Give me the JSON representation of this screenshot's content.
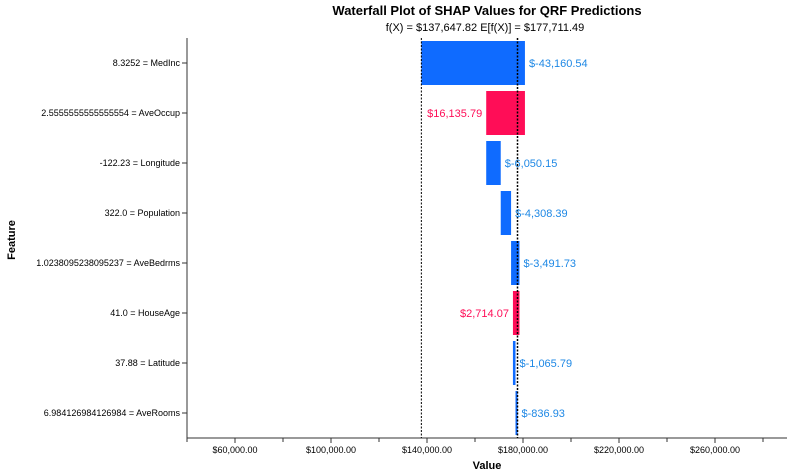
{
  "chart_data": {
    "type": "bar",
    "title": "Waterfall Plot of SHAP Values for QRF Predictions",
    "subtitle": "f(X) = $137,647.82    E[f(X)] = $177,711.49",
    "xlabel": "Value",
    "ylabel": "Feature",
    "xlim": [
      40000,
      290000
    ],
    "x_ticks": [
      60000,
      100000,
      140000,
      180000,
      220000,
      260000
    ],
    "x_tick_labels": [
      "$60,000.00",
      "$100,000.00",
      "$140,000.00",
      "$180,000.00",
      "$220,000.00",
      "$260,000.00"
    ],
    "fx": 137647.82,
    "expected_value": 177711.49,
    "colors": {
      "positive": "#ff0d57",
      "negative": "#1e88e5",
      "negative_bar": "#0f6bff"
    },
    "features": [
      {
        "label": "8.3252 = MedInc",
        "shap": -43160.54,
        "value_label": "$-43,160.54"
      },
      {
        "label": "2.5555555555555554 = AveOccup",
        "shap": 16135.79,
        "value_label": "$16,135.79"
      },
      {
        "label": "-122.23 = Longitude",
        "shap": -6050.15,
        "value_label": "$-6,050.15"
      },
      {
        "label": "322.0 = Population",
        "shap": -4308.39,
        "value_label": "$-4,308.39"
      },
      {
        "label": "1.0238095238095237 = AveBedrms",
        "shap": -3491.73,
        "value_label": "$-3,491.73"
      },
      {
        "label": "41.0 = HouseAge",
        "shap": 2714.07,
        "value_label": "$2,714.07"
      },
      {
        "label": "37.88 = Latitude",
        "shap": -1065.79,
        "value_label": "$-1,065.79"
      },
      {
        "label": "6.984126984126984 = AveRooms",
        "shap": -836.93,
        "value_label": "$-836.93"
      }
    ]
  }
}
